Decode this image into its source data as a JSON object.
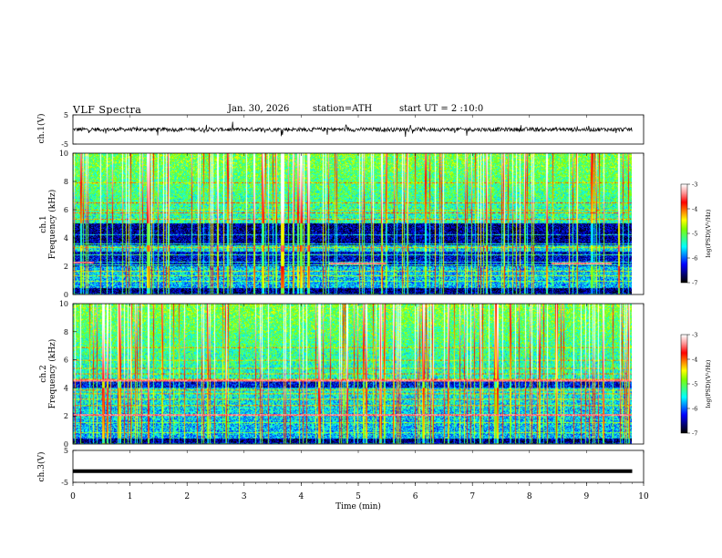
{
  "header": {
    "title": "VLF Spectra",
    "date": "Jan. 30, 2026",
    "station": "station=ATH",
    "start": "start UT =  2 :10:0"
  },
  "chart_data": [
    {
      "type": "line",
      "name": "ch1-waveform",
      "ylabel": "ch.1(V)",
      "ylim": [
        -5,
        5
      ],
      "yticks": [
        5,
        -5
      ],
      "xlim": [
        0,
        10
      ],
      "baseline": 0,
      "color": "#000000"
    },
    {
      "type": "heatmap",
      "name": "ch1-spectrogram",
      "ylabel": "ch.1\nFrequency (kHz)",
      "ylim": [
        0,
        10
      ],
      "yticks": [
        0,
        2,
        4,
        6,
        8,
        10
      ],
      "xlim": [
        0,
        9.8
      ],
      "strong_bands_khz": [
        {
          "lo": 3.5,
          "hi": 5.0,
          "level": -6.9
        },
        {
          "lo": 2.0,
          "hi": 3.0,
          "level": -6.7
        },
        {
          "lo": 0.05,
          "hi": 0.4,
          "level": -7.0
        }
      ],
      "tone_lines_khz": [
        0.9,
        1.3,
        1.6,
        2.1,
        2.3,
        2.8,
        3.3,
        3.6,
        4.2,
        5.3,
        5.8,
        6.0,
        6.5,
        7.9
      ],
      "red_segments": [
        {
          "t0": 0.0,
          "t1": 0.35,
          "f": 2.25
        },
        {
          "t0": 4.5,
          "t1": 5.5,
          "f": 2.2
        },
        {
          "t0": 8.4,
          "t1": 9.45,
          "f": 2.2
        }
      ],
      "colorbar": {
        "label": "log(PSD)(V²/Hz)",
        "ticks": [
          -3,
          -4,
          -5,
          -6,
          -7
        ]
      }
    },
    {
      "type": "heatmap",
      "name": "ch2-spectrogram",
      "ylabel": "ch.2\nFrequency (kHz)",
      "ylim": [
        0,
        10
      ],
      "yticks": [
        0,
        2,
        4,
        6,
        8,
        10
      ],
      "xlim": [
        0,
        9.8
      ],
      "strong_bands_khz": [
        {
          "lo": 4.0,
          "hi": 4.6,
          "level": -6.6
        },
        {
          "lo": 0.05,
          "hi": 0.35,
          "level": -7.0
        }
      ],
      "tone_lines_khz": [
        0.8,
        1.5,
        2.0,
        2.1,
        2.7,
        3.2,
        3.6,
        3.8,
        4.6,
        5.0,
        5.4,
        6.0,
        6.9
      ],
      "red_segments": [
        {
          "t0": 0.0,
          "t1": 9.8,
          "f": 4.55
        },
        {
          "t0": 0.0,
          "t1": 9.8,
          "f": 2.05
        }
      ],
      "colorbar": {
        "label": "log(PSD)(V²/Hz)",
        "ticks": [
          -3,
          -4,
          -5,
          -6,
          -7
        ]
      }
    },
    {
      "type": "line",
      "name": "ch3-waveform",
      "ylabel": "ch.3(V)",
      "ylim": [
        -5,
        5
      ],
      "yticks": [
        5,
        -5
      ],
      "xlim": [
        0,
        10
      ],
      "baseline": -1.5,
      "color": "#000000"
    }
  ],
  "x_axis": {
    "label": "Time (min)",
    "ticks": [
      0,
      1,
      2,
      3,
      4,
      5,
      6,
      7,
      8,
      9,
      10
    ],
    "range": [
      0,
      10
    ]
  },
  "colormap": [
    "#000000",
    "#000080",
    "#0000ff",
    "#0080ff",
    "#00ffff",
    "#40ff80",
    "#80ff00",
    "#ffff00",
    "#ff8000",
    "#ff0000",
    "#ff9090",
    "#ffffff"
  ]
}
